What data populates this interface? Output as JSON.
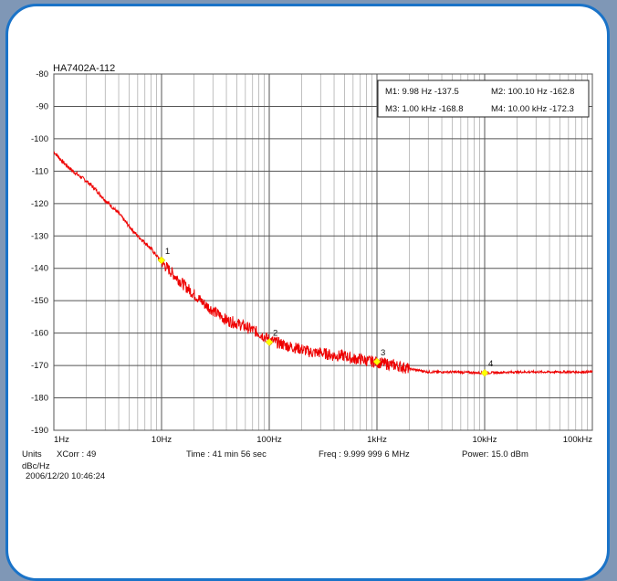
{
  "chart_data": {
    "type": "line",
    "title": "HA7402A-112",
    "xscale": "log",
    "xlim": [
      1,
      100000
    ],
    "ylim": [
      -190,
      -80
    ],
    "yticks": [
      -80,
      -90,
      -100,
      -110,
      -120,
      -130,
      -140,
      -150,
      -160,
      -170,
      -180,
      -190
    ],
    "xtick_labels": [
      "1Hz",
      "10Hz",
      "100Hz",
      "1kHz",
      "10kHz",
      "100kHz"
    ],
    "xtick_values": [
      1,
      10,
      100,
      1000,
      10000,
      100000
    ],
    "grid": true,
    "line_color": "#ee0000",
    "marker_color": "#ffff00",
    "series": [
      {
        "x": [
          1,
          1.2,
          1.5,
          2,
          2.5,
          3,
          4,
          5,
          6,
          7,
          8,
          10,
          13,
          16,
          20,
          25,
          30,
          40,
          50,
          60,
          70,
          80,
          100,
          120,
          150,
          200,
          250,
          300,
          400,
          500,
          600,
          700,
          800,
          1000,
          1500,
          2000,
          3000,
          5000,
          10000,
          20000,
          50000,
          100000
        ],
        "y": [
          -104,
          -107,
          -110,
          -113,
          -116,
          -119,
          -123,
          -127,
          -130,
          -132,
          -134,
          -138,
          -142,
          -145,
          -148,
          -151,
          -153,
          -156,
          -157,
          -158,
          -159,
          -160,
          -162,
          -163,
          -164,
          -165,
          -166,
          -166,
          -167,
          -167,
          -168,
          -168,
          -168.5,
          -169,
          -170,
          -171,
          -172,
          -172,
          -172.3,
          -172,
          -172,
          -172
        ]
      }
    ],
    "markers": [
      {
        "label": "1",
        "x": 9.98,
        "y": -137.5
      },
      {
        "label": "2",
        "x": 100.1,
        "y": -162.8
      },
      {
        "label": "3",
        "x": 1000,
        "y": -168.8
      },
      {
        "label": "4",
        "x": 10000,
        "y": -172.3
      }
    ],
    "marker_table": [
      "M1:  9.98 Hz -137.5",
      "M2:  100.10 Hz -162.8",
      "M3:  1.00 kHz -168.8",
      "M4:  10.00 kHz -172.3"
    ]
  },
  "footer": {
    "units": "Units",
    "xcorr": "XCorr : 49",
    "time": "Time : 41 min 56 sec",
    "freq": "Freq : 9.999 999 6 MHz",
    "power": "Power: 15.0 dBm",
    "units_value": "dBc/Hz",
    "datetime": "2006/12/20 10:46:24"
  }
}
